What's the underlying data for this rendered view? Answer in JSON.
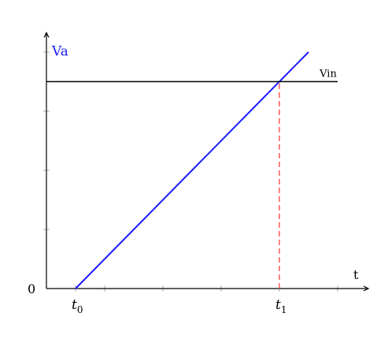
{
  "chart_data": {
    "type": "line",
    "title": "",
    "xlabel": "t",
    "ylabel": "Va",
    "grid": false,
    "xlim": [
      0,
      5.5
    ],
    "ylim": [
      0,
      4.3
    ],
    "y_origin_label": "0",
    "x_tick_labels": [
      {
        "x": 0.5,
        "label": "t",
        "sub": "0"
      },
      {
        "x": 4.0,
        "label": "t",
        "sub": "1"
      }
    ],
    "x_minor_ticks": [
      0.5,
      1,
      2,
      3,
      4,
      5
    ],
    "y_minor_ticks": [
      1,
      2,
      3,
      4
    ],
    "series": [
      {
        "kind": "ramp",
        "color": "#1a1aff",
        "x": [
          0.5,
          4.5
        ],
        "y": [
          0.0,
          4.0
        ]
      },
      {
        "kind": "threshold",
        "name": "Vin",
        "color": "#000000",
        "x": [
          0.0,
          5.0
        ],
        "y": [
          3.5,
          3.5
        ]
      }
    ],
    "annotations": [
      {
        "kind": "vline-dashed",
        "color": "#ff4d4d",
        "x": 4.0,
        "y_from": 0.0,
        "y_to": 3.5
      }
    ],
    "colors": {
      "ylabel": "#1a1aff",
      "axis": "#000000"
    }
  }
}
